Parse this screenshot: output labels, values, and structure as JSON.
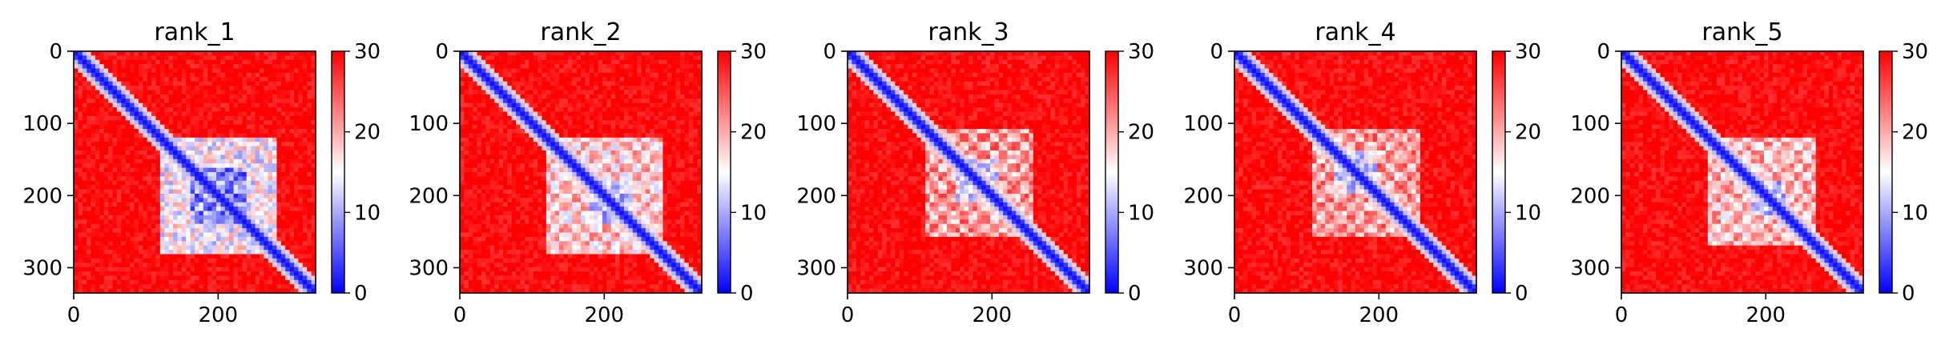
{
  "figure": {
    "panels": [
      {
        "title": "rank_1"
      },
      {
        "title": "rank_2"
      },
      {
        "title": "rank_3"
      },
      {
        "title": "rank_4"
      },
      {
        "title": "rank_5"
      }
    ]
  },
  "chart_data": [
    {
      "type": "heatmap",
      "title": "rank_1",
      "xlabel": "",
      "ylabel": "",
      "x_ticks": [
        0,
        200
      ],
      "y_ticks": [
        0,
        100,
        200,
        300
      ],
      "xlim": [
        0,
        335
      ],
      "ylim": [
        335,
        0
      ],
      "colorbar": {
        "label": "",
        "ticks": [
          0,
          10,
          20,
          30
        ],
        "range": [
          0,
          30
        ],
        "colormap": "bwr",
        "colors": [
          "#0000ff",
          "#ffffff",
          "#ff0000"
        ]
      },
      "features": {
        "diagonal_band": true,
        "low_value_regions": [
          {
            "x": [
              120,
              280
            ],
            "y": [
              120,
              280
            ],
            "level": 12
          },
          {
            "x": [
              160,
              240
            ],
            "y": [
              160,
              240
            ],
            "level": 5
          }
        ]
      }
    },
    {
      "type": "heatmap",
      "title": "rank_2",
      "xlabel": "",
      "ylabel": "",
      "x_ticks": [
        0,
        200
      ],
      "y_ticks": [
        0,
        100,
        200,
        300
      ],
      "xlim": [
        0,
        335
      ],
      "ylim": [
        335,
        0
      ],
      "colorbar": {
        "label": "",
        "ticks": [
          0,
          10,
          20,
          30
        ],
        "range": [
          0,
          30
        ],
        "colormap": "bwr",
        "colors": [
          "#0000ff",
          "#ffffff",
          "#ff0000"
        ]
      },
      "features": {
        "diagonal_band": true,
        "low_value_regions": [
          {
            "x": [
              120,
              280
            ],
            "y": [
              120,
              280
            ],
            "level": 15
          },
          {
            "x": [
              180,
              240
            ],
            "y": [
              180,
              240
            ],
            "level": 9
          }
        ]
      }
    },
    {
      "type": "heatmap",
      "title": "rank_3",
      "xlabel": "",
      "ylabel": "",
      "x_ticks": [
        0,
        200
      ],
      "y_ticks": [
        0,
        100,
        200,
        300
      ],
      "xlim": [
        0,
        335
      ],
      "ylim": [
        335,
        0
      ],
      "colorbar": {
        "label": "",
        "ticks": [
          0,
          10,
          20,
          30
        ],
        "range": [
          0,
          30
        ],
        "colormap": "bwr",
        "colors": [
          "#0000ff",
          "#ffffff",
          "#ff0000"
        ]
      },
      "features": {
        "diagonal_band": true,
        "low_value_regions": [
          {
            "x": [
              110,
              260
            ],
            "y": [
              110,
              260
            ],
            "level": 18
          },
          {
            "x": [
              150,
              210
            ],
            "y": [
              150,
              210
            ],
            "level": 11
          }
        ]
      }
    },
    {
      "type": "heatmap",
      "title": "rank_4",
      "xlabel": "",
      "ylabel": "",
      "x_ticks": [
        0,
        200
      ],
      "y_ticks": [
        0,
        100,
        200,
        300
      ],
      "xlim": [
        0,
        335
      ],
      "ylim": [
        335,
        0
      ],
      "colorbar": {
        "label": "",
        "ticks": [
          0,
          10,
          20,
          30
        ],
        "range": [
          0,
          30
        ],
        "colormap": "bwr",
        "colors": [
          "#0000ff",
          "#ffffff",
          "#ff0000"
        ]
      },
      "features": {
        "diagonal_band": true,
        "low_value_regions": [
          {
            "x": [
              110,
              260
            ],
            "y": [
              110,
              260
            ],
            "level": 18
          },
          {
            "x": [
              140,
              200
            ],
            "y": [
              140,
              200
            ],
            "level": 10
          }
        ]
      }
    },
    {
      "type": "heatmap",
      "title": "rank_5",
      "xlabel": "",
      "ylabel": "",
      "x_ticks": [
        0,
        200
      ],
      "y_ticks": [
        0,
        100,
        200,
        300
      ],
      "xlim": [
        0,
        335
      ],
      "ylim": [
        335,
        0
      ],
      "colorbar": {
        "label": "",
        "ticks": [
          0,
          10,
          20,
          30
        ],
        "range": [
          0,
          30
        ],
        "colormap": "bwr",
        "colors": [
          "#0000ff",
          "#ffffff",
          "#ff0000"
        ]
      },
      "features": {
        "diagonal_band": true,
        "low_value_regions": [
          {
            "x": [
              120,
              270
            ],
            "y": [
              120,
              270
            ],
            "level": 16
          },
          {
            "x": [
              180,
              230
            ],
            "y": [
              180,
              230
            ],
            "level": 9
          }
        ]
      }
    }
  ]
}
